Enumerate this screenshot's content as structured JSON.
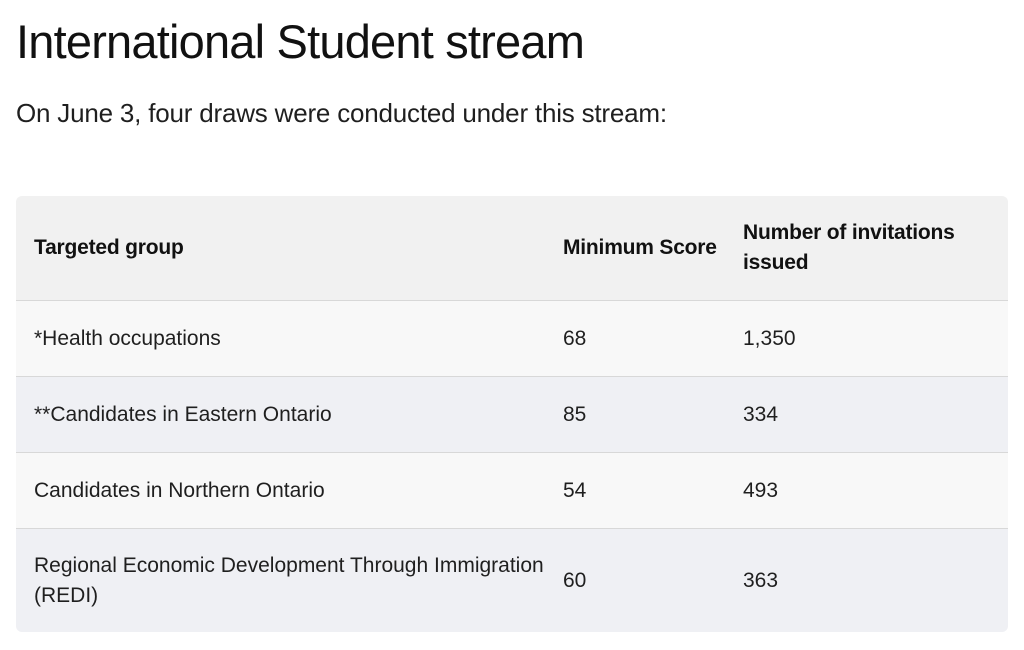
{
  "heading": "International Student stream",
  "intro": "On June 3, four draws were conducted under this stream:",
  "table": {
    "headers": [
      "Targeted group",
      "Minimum Score",
      "Number of invitations issued"
    ],
    "rows": [
      [
        "*Health occupations",
        "68",
        "1,350"
      ],
      [
        "**Candidates in Eastern Ontario",
        "85",
        "334"
      ],
      [
        "Candidates in Northern Ontario",
        "54",
        "493"
      ],
      [
        "Regional Economic Development Through Immigration (REDI)",
        "60",
        "363"
      ]
    ]
  }
}
